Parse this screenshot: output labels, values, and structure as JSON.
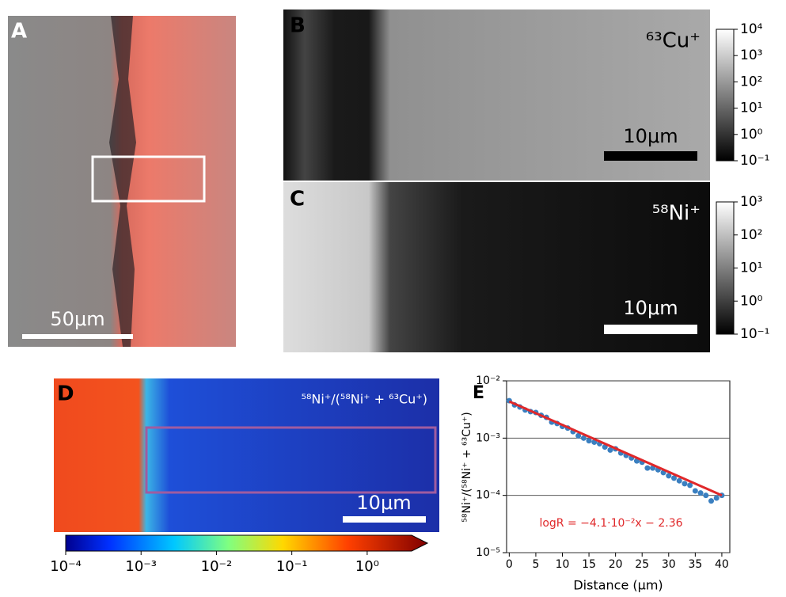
{
  "panels": [
    {
      "label": "A",
      "scale_bar": "50μm"
    },
    {
      "label": "B",
      "ion": "⁶³Cu⁺",
      "scale_bar": "10μm",
      "colorbar": {
        "lim": [
          0.1,
          10000
        ],
        "ticks": [
          {
            "value": 0.1,
            "label": "10⁻¹"
          },
          {
            "value": 1,
            "label": "10⁰"
          },
          {
            "value": 10,
            "label": "10¹"
          },
          {
            "value": 100,
            "label": "10²"
          },
          {
            "value": 1000,
            "label": "10³"
          },
          {
            "value": 10000,
            "label": "10⁴"
          }
        ]
      }
    },
    {
      "label": "C",
      "ion": "⁵⁸Ni⁺",
      "scale_bar": "10μm",
      "colorbar": {
        "lim": [
          0.1,
          1000
        ],
        "ticks": [
          {
            "value": 0.1,
            "label": "10⁻¹"
          },
          {
            "value": 1,
            "label": "10⁰"
          },
          {
            "value": 10,
            "label": "10¹"
          },
          {
            "value": 100,
            "label": "10²"
          },
          {
            "value": 1000,
            "label": "10³"
          }
        ]
      }
    },
    {
      "label": "D",
      "ion": "⁵⁸Ni⁺/(⁵⁸Ni⁺ + ⁶³Cu⁺)",
      "scale_bar": "10μm",
      "colorbar": {
        "lim": [
          0.0001,
          6.3
        ],
        "ticks": [
          {
            "value": 0.0001,
            "label": "10⁻⁴"
          },
          {
            "value": 0.001,
            "label": "10⁻³"
          },
          {
            "value": 0.01,
            "label": "10⁻²"
          },
          {
            "value": 0.1,
            "label": "10⁻¹"
          },
          {
            "value": 1,
            "label": "10⁰"
          }
        ]
      }
    }
  ],
  "chart_data": {
    "type": "scatter",
    "panel_label": "E",
    "x_label": "Distance (μm)",
    "y_label": "⁵⁸Ni⁺/(⁵⁸Ni⁺ + ⁶³Cu⁺)",
    "y_log": true,
    "grid": true,
    "xlim": [
      -0.5,
      41.5
    ],
    "ylim": [
      1e-05,
      0.01
    ],
    "xticks": [
      0,
      5,
      10,
      15,
      20,
      25,
      30,
      35,
      40
    ],
    "yticks": [
      {
        "value": 1e-05,
        "label": "10⁻⁵"
      },
      {
        "value": 0.0001,
        "label": "10⁻⁴"
      },
      {
        "value": 0.001,
        "label": "10⁻³"
      },
      {
        "value": 0.01,
        "label": "10⁻²"
      }
    ],
    "series": [
      {
        "name": "data",
        "color": "#3a7fc0",
        "x": [
          0,
          1,
          2,
          3,
          4,
          5,
          6,
          7,
          8,
          9,
          10,
          11,
          12,
          13,
          14,
          15,
          16,
          17,
          18,
          19,
          20,
          21,
          22,
          23,
          24,
          25,
          26,
          27,
          28,
          29,
          30,
          31,
          32,
          33,
          34,
          35,
          36,
          37,
          38,
          39,
          40
        ],
        "values": [
          0.0045,
          0.0038,
          0.0035,
          0.0031,
          0.0029,
          0.0028,
          0.0025,
          0.0023,
          0.0019,
          0.0018,
          0.0016,
          0.0015,
          0.0013,
          0.0011,
          0.001,
          0.0009,
          0.00085,
          0.0008,
          0.0007,
          0.00062,
          0.00065,
          0.00055,
          0.0005,
          0.00045,
          0.0004,
          0.00038,
          0.0003,
          0.0003,
          0.00028,
          0.00025,
          0.00022,
          0.0002,
          0.00018,
          0.00016,
          0.00015,
          0.00012,
          0.00011,
          0.0001,
          8e-05,
          9e-05,
          0.0001
        ]
      },
      {
        "name": "fit",
        "color": "#e0282a",
        "x": [
          0,
          40
        ],
        "values": [
          0.00437,
          0.0001
        ]
      }
    ],
    "annotation": "logR = −4.1·10⁻²x − 2.36"
  }
}
